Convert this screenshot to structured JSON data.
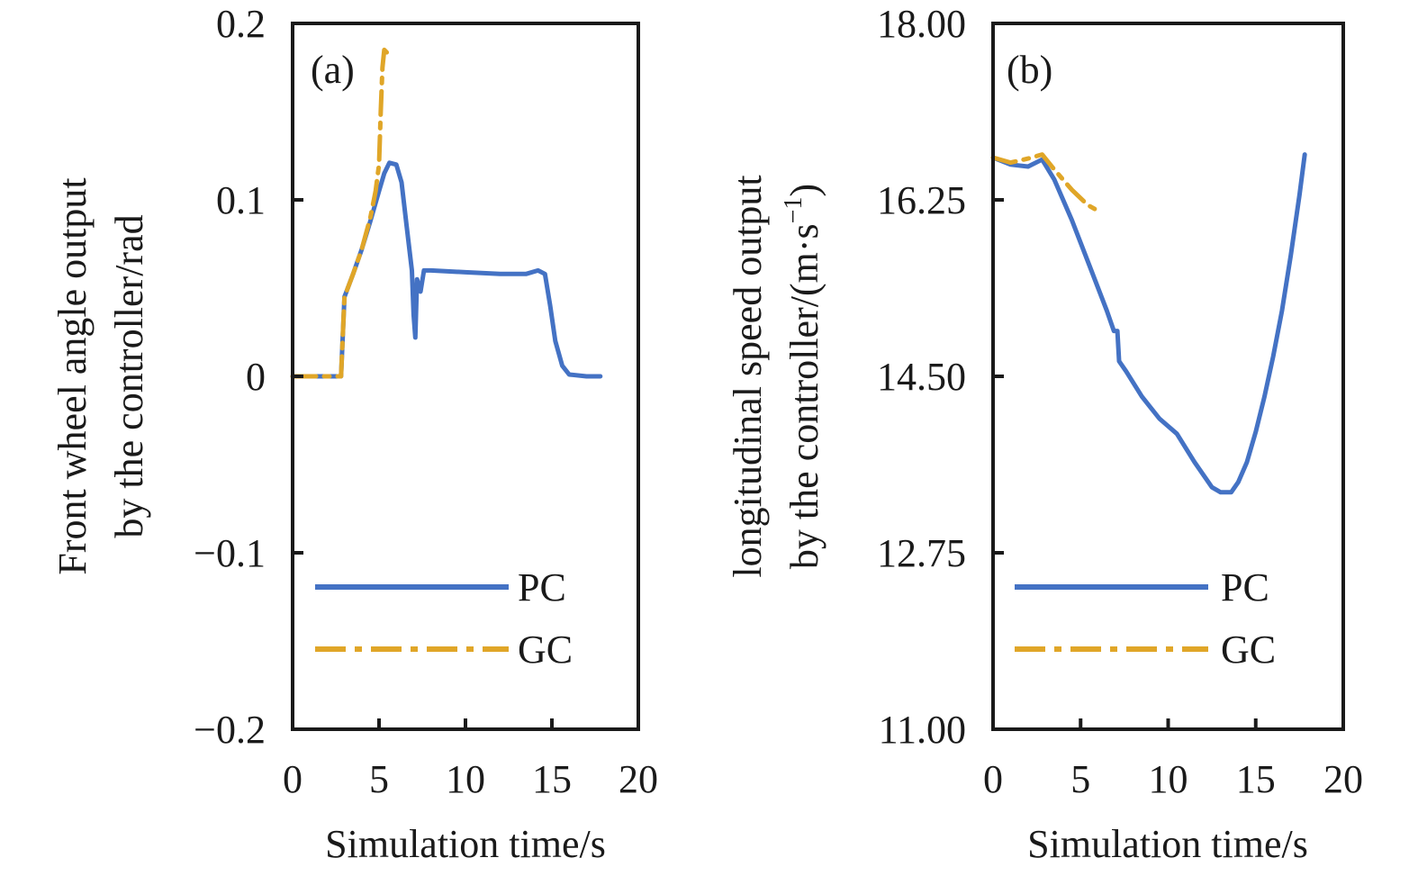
{
  "chart_data": [
    {
      "id": "a",
      "type": "line",
      "panel_label": "(a)",
      "xlabel": "Simulation time/s",
      "ylabel_lines": [
        "Front wheel angle output",
        "by the controller/rad"
      ],
      "xlim": [
        0,
        20
      ],
      "ylim": [
        -0.2,
        0.2
      ],
      "xticks": [
        0,
        5,
        10,
        15,
        20
      ],
      "xtick_labels": [
        "0",
        "5",
        "10",
        "15",
        "20"
      ],
      "yticks": [
        -0.2,
        -0.1,
        0,
        0.1,
        0.2
      ],
      "ytick_labels": [
        "−0.2",
        "−0.1",
        "0",
        "0.1",
        "0.2"
      ],
      "legend_position": "bottom-right",
      "series": [
        {
          "name": "PC",
          "color": "#4472c4",
          "style": "solid",
          "points": [
            [
              0,
              0
            ],
            [
              2.8,
              0
            ],
            [
              3.0,
              0.045
            ],
            [
              3.5,
              0.058
            ],
            [
              4.0,
              0.072
            ],
            [
              4.5,
              0.088
            ],
            [
              5.0,
              0.105
            ],
            [
              5.3,
              0.115
            ],
            [
              5.6,
              0.121
            ],
            [
              6.0,
              0.12
            ],
            [
              6.3,
              0.11
            ],
            [
              6.6,
              0.085
            ],
            [
              6.9,
              0.06
            ],
            [
              7.0,
              0.035
            ],
            [
              7.1,
              0.022
            ],
            [
              7.2,
              0.055
            ],
            [
              7.4,
              0.048
            ],
            [
              7.6,
              0.06
            ],
            [
              8.0,
              0.06
            ],
            [
              10,
              0.059
            ],
            [
              12,
              0.058
            ],
            [
              13.5,
              0.058
            ],
            [
              14.2,
              0.06
            ],
            [
              14.6,
              0.058
            ],
            [
              14.9,
              0.04
            ],
            [
              15.2,
              0.02
            ],
            [
              15.6,
              0.006
            ],
            [
              16.0,
              0.001
            ],
            [
              17.0,
              0
            ],
            [
              17.8,
              0
            ]
          ]
        },
        {
          "name": "GC",
          "color": "#e0a628",
          "style": "dashdot",
          "points": [
            [
              0,
              0
            ],
            [
              2.8,
              0
            ],
            [
              3.0,
              0.045
            ],
            [
              3.5,
              0.058
            ],
            [
              4.0,
              0.072
            ],
            [
              4.5,
              0.09
            ],
            [
              4.8,
              0.105
            ],
            [
              5.0,
              0.12
            ],
            [
              5.1,
              0.15
            ],
            [
              5.2,
              0.175
            ],
            [
              5.3,
              0.185
            ],
            [
              5.5,
              0.183
            ],
            [
              5.8,
              0.184
            ]
          ]
        }
      ]
    },
    {
      "id": "b",
      "type": "line",
      "panel_label": "(b)",
      "xlabel": "Simulation time/s",
      "ylabel_lines": [
        "longitudinal speed output",
        "by the controller/(m·s",
        "−1",
        ")"
      ],
      "xlim": [
        0,
        20
      ],
      "ylim": [
        11.0,
        18.0
      ],
      "xticks": [
        0,
        5,
        10,
        15,
        20
      ],
      "xtick_labels": [
        "0",
        "5",
        "10",
        "15",
        "20"
      ],
      "yticks": [
        11.0,
        12.75,
        14.5,
        16.25,
        18.0
      ],
      "ytick_labels": [
        "11.00",
        "12.75",
        "14.50",
        "16.25",
        "18.00"
      ],
      "legend_position": "bottom-right",
      "series": [
        {
          "name": "PC",
          "color": "#4472c4",
          "style": "solid",
          "points": [
            [
              0,
              16.67
            ],
            [
              1.0,
              16.6
            ],
            [
              2.0,
              16.58
            ],
            [
              2.8,
              16.65
            ],
            [
              3.5,
              16.45
            ],
            [
              4.5,
              16.05
            ],
            [
              5.5,
              15.6
            ],
            [
              6.5,
              15.15
            ],
            [
              6.9,
              14.95
            ],
            [
              7.1,
              14.95
            ],
            [
              7.2,
              14.65
            ],
            [
              7.6,
              14.55
            ],
            [
              8.5,
              14.3
            ],
            [
              9.5,
              14.08
            ],
            [
              10.5,
              13.93
            ],
            [
              11.5,
              13.65
            ],
            [
              12.5,
              13.4
            ],
            [
              13.0,
              13.35
            ],
            [
              13.6,
              13.35
            ],
            [
              14.0,
              13.45
            ],
            [
              14.5,
              13.65
            ],
            [
              15.0,
              13.95
            ],
            [
              15.5,
              14.3
            ],
            [
              16.0,
              14.7
            ],
            [
              16.5,
              15.15
            ],
            [
              17.0,
              15.7
            ],
            [
              17.5,
              16.3
            ],
            [
              17.8,
              16.7
            ]
          ]
        },
        {
          "name": "GC",
          "color": "#e0a628",
          "style": "dashdot",
          "points": [
            [
              0,
              16.67
            ],
            [
              1.0,
              16.62
            ],
            [
              2.0,
              16.66
            ],
            [
              2.8,
              16.7
            ],
            [
              3.5,
              16.55
            ],
            [
              4.5,
              16.35
            ],
            [
              5.4,
              16.2
            ],
            [
              5.9,
              16.15
            ]
          ]
        }
      ]
    }
  ],
  "legend": {
    "items": [
      {
        "label": "PC",
        "color": "#4472c4",
        "style": "solid"
      },
      {
        "label": "GC",
        "color": "#e0a628",
        "style": "dashdot"
      }
    ]
  }
}
